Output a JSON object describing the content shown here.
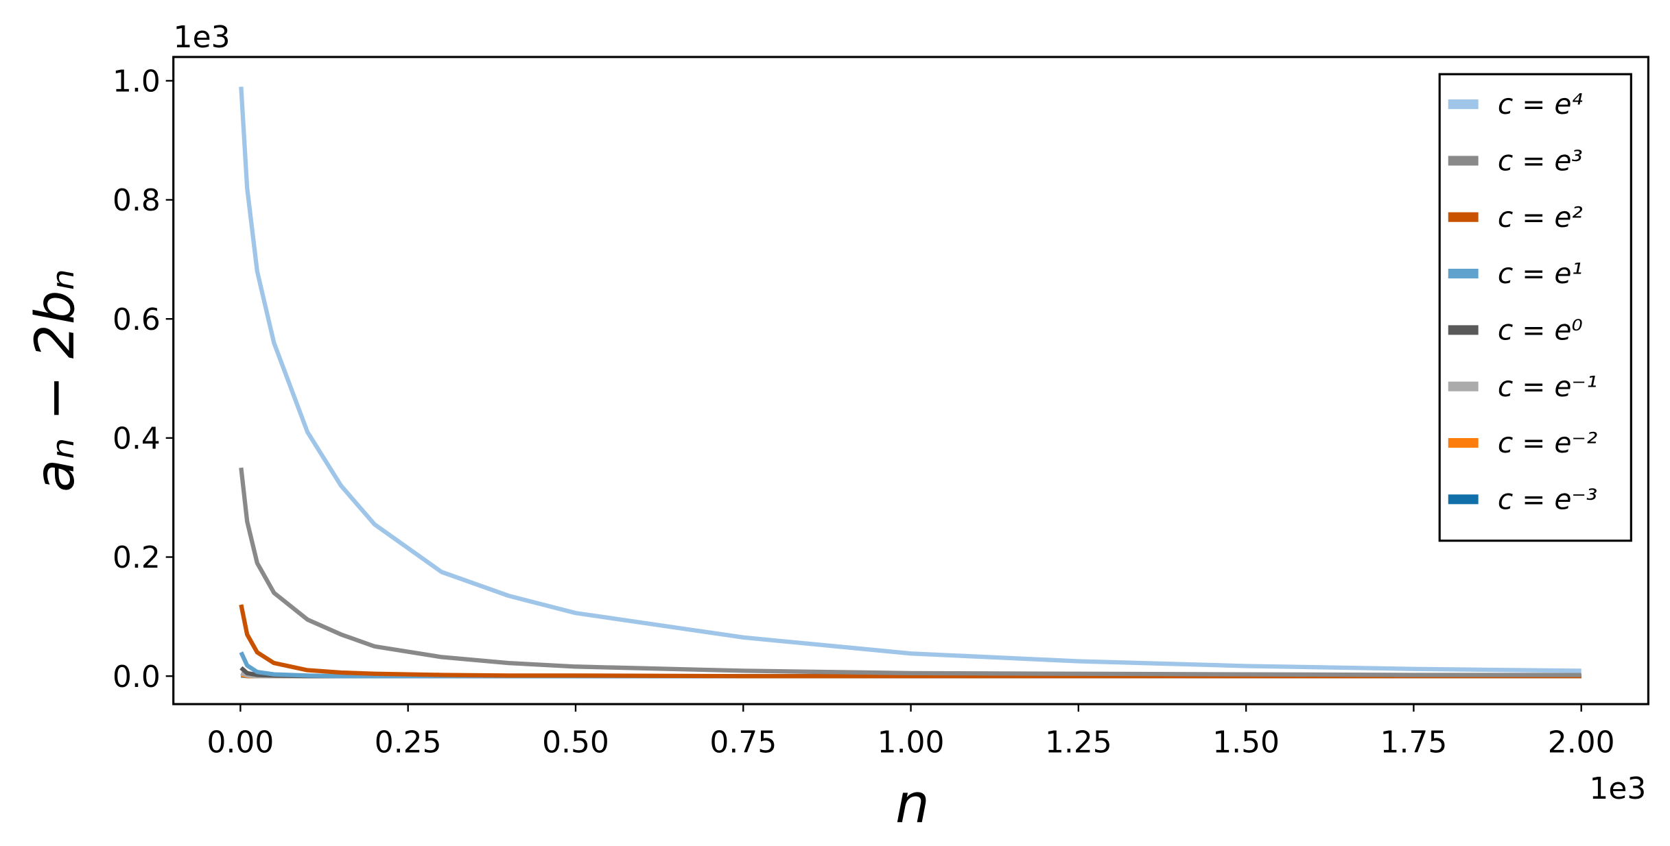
{
  "chart_data": {
    "type": "line",
    "x_label": "n",
    "y_label": "aₙ − 2bₙ",
    "x_offset_label": "1e3",
    "y_offset_label": "1e3",
    "x": [
      1,
      10,
      25,
      50,
      100,
      150,
      200,
      300,
      400,
      500,
      750,
      1000,
      1250,
      1500,
      1750,
      2000
    ],
    "series": [
      {
        "name": "c = e⁴",
        "color": "#9fc5e8",
        "values": [
          990,
          820,
          680,
          560,
          410,
          320,
          255,
          175,
          135,
          106,
          65,
          38,
          25,
          17,
          12,
          9
        ]
      },
      {
        "name": "c = e³",
        "color": "#898989",
        "values": [
          350,
          260,
          190,
          140,
          95,
          70,
          50,
          32,
          22,
          16,
          9,
          5,
          4,
          3,
          2,
          2
        ]
      },
      {
        "name": "c = e²",
        "color": "#c85200",
        "values": [
          120,
          70,
          40,
          22,
          10,
          6,
          4,
          2,
          1,
          1,
          0,
          0,
          0,
          0,
          0,
          0
        ]
      },
      {
        "name": "c = e¹",
        "color": "#5fa2ce",
        "values": [
          40,
          18,
          7,
          3,
          1,
          0,
          0,
          0,
          0,
          0,
          0,
          0,
          0,
          0,
          0,
          0
        ]
      },
      {
        "name": "c = e⁰",
        "color": "#595959",
        "values": [
          14,
          5,
          2,
          1,
          0,
          0,
          0,
          0,
          0,
          0,
          0,
          0,
          0,
          0,
          0,
          0
        ]
      },
      {
        "name": "c = e⁻¹",
        "color": "#ababab",
        "values": [
          5,
          1,
          0,
          0,
          0,
          0,
          0,
          0,
          0,
          0,
          0,
          0,
          0,
          0,
          0,
          0
        ]
      },
      {
        "name": "c = e⁻²",
        "color": "#fc7d0b",
        "values": [
          2,
          0,
          0,
          0,
          0,
          0,
          0,
          0,
          0,
          0,
          0,
          0,
          0,
          0,
          0,
          0
        ]
      },
      {
        "name": "c = e⁻³",
        "color": "#1170aa",
        "values": [
          1,
          0,
          0,
          0,
          0,
          0,
          0,
          0,
          0,
          0,
          0,
          0,
          0,
          0,
          0,
          0
        ]
      }
    ],
    "xlim": [
      -100,
      2100
    ],
    "ylim": [
      -47,
      1040
    ],
    "xticks": [
      {
        "value": 0,
        "label": "0.00"
      },
      {
        "value": 250,
        "label": "0.25"
      },
      {
        "value": 500,
        "label": "0.50"
      },
      {
        "value": 750,
        "label": "0.75"
      },
      {
        "value": 1000,
        "label": "1.00"
      },
      {
        "value": 1250,
        "label": "1.25"
      },
      {
        "value": 1500,
        "label": "1.50"
      },
      {
        "value": 1750,
        "label": "1.75"
      },
      {
        "value": 2000,
        "label": "2.00"
      }
    ],
    "yticks": [
      {
        "value": 0,
        "label": "0.0"
      },
      {
        "value": 200,
        "label": "0.2"
      },
      {
        "value": 400,
        "label": "0.4"
      },
      {
        "value": 600,
        "label": "0.6"
      },
      {
        "value": 800,
        "label": "0.8"
      },
      {
        "value": 1000,
        "label": "1.0"
      }
    ],
    "grid": false,
    "legend": "upper right"
  }
}
